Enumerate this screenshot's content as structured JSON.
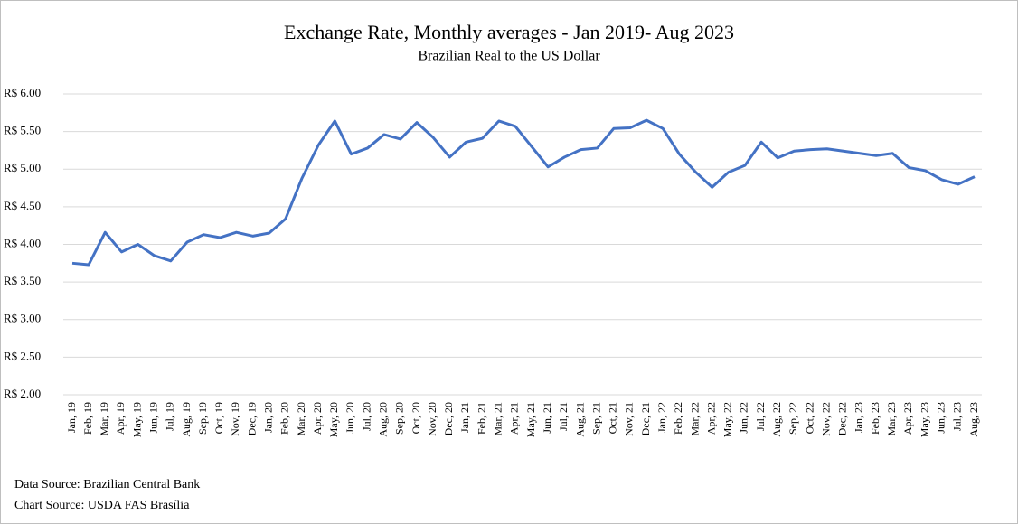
{
  "chart_data": {
    "type": "line",
    "title": "Exchange Rate, Monthly averages - Jan 2019- Aug 2023",
    "subtitle": "Brazilian Real to the US Dollar",
    "notes": [
      "Data Source: Brazilian Central Bank",
      "Chart Source: USDA FAS Brasília"
    ],
    "categories": [
      "Jan, 19",
      "Feb, 19",
      "Mar, 19",
      "Apr, 19",
      "May, 19",
      "Jun, 19",
      "Jul, 19",
      "Aug, 19",
      "Sep, 19",
      "Oct, 19",
      "Nov, 19",
      "Dec, 19",
      "Jan, 20",
      "Feb, 20",
      "Mar, 20",
      "Apr, 20",
      "May, 20",
      "Jun, 20",
      "Jul, 20",
      "Aug, 20",
      "Sep, 20",
      "Oct, 20",
      "Nov, 20",
      "Dec, 20",
      "Jan, 21",
      "Feb, 21",
      "Mar, 21",
      "Apr, 21",
      "May, 21",
      "Jun, 21",
      "Jul, 21",
      "Aug, 21",
      "Sep, 21",
      "Oct, 21",
      "Nov, 21",
      "Dec, 21",
      "Jan, 22",
      "Feb, 22",
      "Mar, 22",
      "Apr, 22",
      "May, 22",
      "Jun, 22",
      "Jul, 22",
      "Aug, 22",
      "Sep, 22",
      "Oct, 22",
      "Nov, 22",
      "Dec, 22",
      "Jan, 23",
      "Feb, 23",
      "Mar, 23",
      "Apr, 23",
      "May, 23",
      "Jun, 23",
      "Jul, 23",
      "Aug, 23"
    ],
    "values": [
      3.75,
      3.73,
      4.16,
      3.9,
      4.0,
      3.85,
      3.78,
      4.03,
      4.13,
      4.09,
      4.16,
      4.11,
      4.15,
      4.34,
      4.88,
      5.32,
      5.64,
      5.2,
      5.28,
      5.46,
      5.4,
      5.62,
      5.42,
      5.16,
      5.36,
      5.41,
      5.64,
      5.57,
      5.3,
      5.03,
      5.16,
      5.26,
      5.28,
      5.54,
      5.55,
      5.65,
      5.54,
      5.2,
      4.96,
      4.76,
      4.96,
      5.05,
      5.36,
      5.15,
      5.24,
      5.26,
      5.27,
      5.24,
      5.21,
      5.18,
      5.21,
      5.02,
      4.98,
      4.86,
      4.8,
      4.9
    ],
    "color": "#4472c4",
    "ylim": [
      2,
      6
    ],
    "yticks": [
      {
        "value": 2,
        "label": "R$ 2.00"
      },
      {
        "value": 2.5,
        "label": "R$ 2.50"
      },
      {
        "value": 3,
        "label": "R$ 3.00"
      },
      {
        "value": 3.5,
        "label": "R$ 3.50"
      },
      {
        "value": 4,
        "label": "R$ 4.00"
      },
      {
        "value": 4.5,
        "label": "R$ 4.50"
      },
      {
        "value": 5,
        "label": "R$ 5.00"
      },
      {
        "value": 5.5,
        "label": "R$ 5.50"
      },
      {
        "value": 6,
        "label": "R$ 6.00"
      }
    ],
    "grid": true
  }
}
